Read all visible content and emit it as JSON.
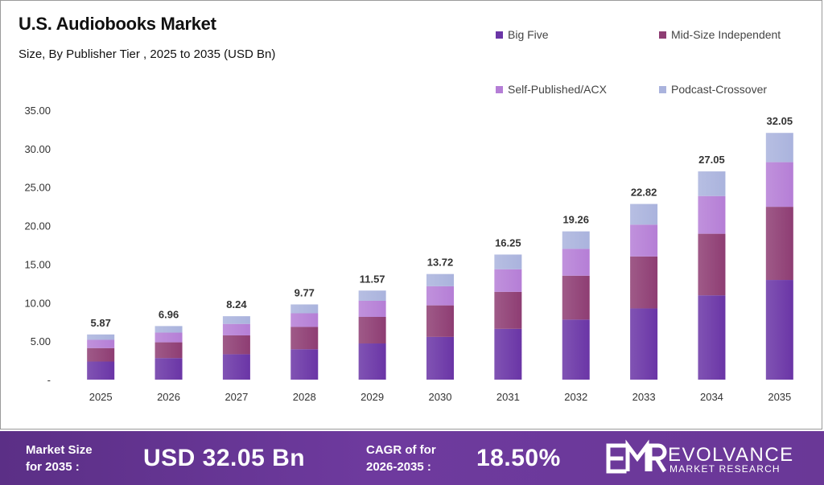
{
  "header": {
    "title": "U.S. Audiobooks Market",
    "subtitle": "Size, By Publisher Tier , 2025 to 2035 (USD Bn)"
  },
  "chart_data": {
    "type": "bar",
    "stacked": true,
    "title": "U.S. Audiobooks Market",
    "subtitle": "Size, By Publisher Tier , 2025 to 2035 (USD Bn)",
    "categories": [
      "2025",
      "2026",
      "2027",
      "2028",
      "2029",
      "2030",
      "2031",
      "2032",
      "2033",
      "2034",
      "2035"
    ],
    "series": [
      {
        "name": "Big Five",
        "color": "#6a35a6",
        "values": [
          2.35,
          2.8,
          3.3,
          3.95,
          4.7,
          5.55,
          6.6,
          7.8,
          9.25,
          10.95,
          12.95
        ]
      },
      {
        "name": "Mid-Size Independent",
        "color": "#8e3d73",
        "values": [
          1.75,
          2.05,
          2.45,
          2.9,
          3.45,
          4.1,
          4.8,
          5.7,
          6.75,
          8.0,
          9.5
        ]
      },
      {
        "name": "Self-Published/ACX",
        "color": "#b57ed6",
        "values": [
          1.07,
          1.26,
          1.49,
          1.77,
          2.09,
          2.48,
          2.94,
          3.49,
          4.13,
          4.9,
          5.8
        ]
      },
      {
        "name": "Podcast-Crossover",
        "color": "#aab3dd",
        "values": [
          0.7,
          0.85,
          1.0,
          1.15,
          1.33,
          1.59,
          1.91,
          2.27,
          2.69,
          3.2,
          3.8
        ]
      }
    ],
    "totals": [
      "5.87",
      "6.96",
      "8.24",
      "9.77",
      "11.57",
      "13.72",
      "16.25",
      "19.26",
      "22.82",
      "27.05",
      "32.05"
    ],
    "total_values": [
      5.87,
      6.96,
      8.24,
      9.77,
      11.57,
      13.72,
      16.25,
      19.26,
      22.82,
      27.05,
      32.05
    ],
    "yticks": [
      "-",
      "5.00",
      "10.00",
      "15.00",
      "20.00",
      "25.00",
      "30.00",
      "35.00"
    ],
    "ylim": [
      0,
      35
    ],
    "legend_position": "top-right",
    "grid": false
  },
  "footer": {
    "market_size_label_line1": "Market Size",
    "market_size_label_line2": "for 2035 :",
    "market_size_value": "USD 32.05 Bn",
    "cagr_label_line1": "CAGR of for",
    "cagr_label_line2": "2026-2035 :",
    "cagr_value": "18.50%",
    "brand_name": "EVOLVANCE",
    "brand_sub": "MARKET RESEARCH",
    "background_color": "#5b2f86"
  }
}
